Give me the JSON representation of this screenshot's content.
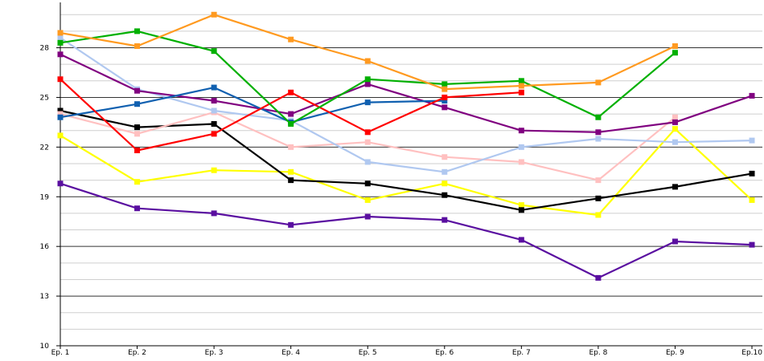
{
  "chart_data": {
    "type": "line",
    "title": "",
    "xlabel": "",
    "ylabel": "",
    "categories": [
      "Ep. 1",
      "Ep. 2",
      "Ep. 3",
      "Ep. 4",
      "Ep. 5",
      "Ep. 6",
      "Ep. 7",
      "Ep. 8",
      "Ep. 9",
      "Ep.10"
    ],
    "ylim": [
      10,
      30.4
    ],
    "yticks": [
      10,
      13,
      16,
      19,
      22,
      25,
      28
    ],
    "grid": true,
    "series": [
      {
        "color": "#5a0fa0",
        "values": [
          19.8,
          18.3,
          18.0,
          17.3,
          17.8,
          17.6,
          16.4,
          14.1,
          16.3,
          16.1
        ]
      },
      {
        "color": "#ffff00",
        "values": [
          22.7,
          19.9,
          20.6,
          20.5,
          18.8,
          19.8,
          18.5,
          17.9,
          23.1,
          18.8
        ]
      },
      {
        "color": "#000000",
        "values": [
          24.2,
          23.2,
          23.4,
          20.0,
          19.8,
          19.1,
          18.2,
          18.9,
          19.6,
          20.4
        ]
      },
      {
        "color": "#ffc0c0",
        "values": [
          24.0,
          22.8,
          24.1,
          22.0,
          22.3,
          21.4,
          21.1,
          20.0,
          23.8,
          null
        ]
      },
      {
        "color": "#b0c8f0",
        "values": [
          28.6,
          25.5,
          24.2,
          23.6,
          21.1,
          20.5,
          22.0,
          22.5,
          22.3,
          22.4
        ]
      },
      {
        "color": "#800080",
        "values": [
          27.6,
          25.4,
          24.8,
          24.0,
          25.8,
          24.4,
          23.0,
          22.9,
          23.5,
          25.1
        ]
      },
      {
        "color": "#1060b0",
        "values": [
          23.8,
          24.6,
          25.6,
          23.5,
          24.7,
          24.8,
          null,
          null,
          null,
          null
        ]
      },
      {
        "color": "#ff0000",
        "values": [
          26.1,
          21.8,
          22.8,
          25.3,
          22.9,
          25.0,
          25.3,
          null,
          null,
          null
        ]
      },
      {
        "color": "#00b000",
        "values": [
          28.3,
          29.0,
          27.8,
          23.4,
          26.1,
          25.8,
          26.0,
          23.8,
          27.7,
          null
        ]
      },
      {
        "color": "#ff9a20",
        "values": [
          28.9,
          28.1,
          30.0,
          28.5,
          27.2,
          25.5,
          25.7,
          25.9,
          28.1,
          null
        ]
      }
    ]
  }
}
